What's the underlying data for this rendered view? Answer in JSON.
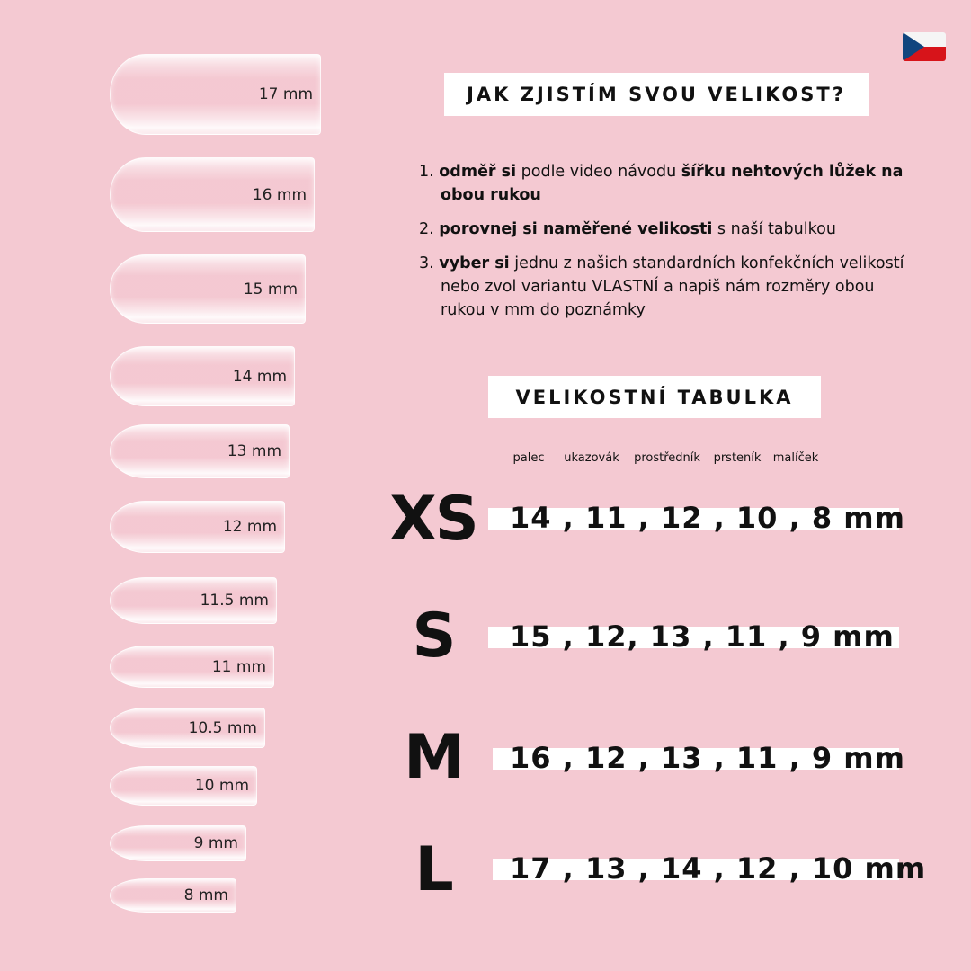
{
  "nails": [
    "17 mm",
    "16 mm",
    "15 mm",
    "14 mm",
    "13 mm",
    "12 mm",
    "11.5 mm",
    "11 mm",
    "10.5 mm",
    "10 mm",
    "9 mm",
    "8 mm"
  ],
  "flag_icon": "czech-flag",
  "heading": "JAK ZJISTÍM SVOU VELIKOST?",
  "steps": [
    {
      "num": "1.",
      "parts": [
        {
          "b": "odměř si"
        },
        {
          "t": " podle video návodu "
        },
        {
          "b": "šířku nehtových lůžek na obou rukou"
        }
      ]
    },
    {
      "num": "2.",
      "parts": [
        {
          "b": "porovnej si naměřené velikosti"
        },
        {
          "t": " s naší tabulkou"
        }
      ]
    },
    {
      "num": "3.",
      "parts": [
        {
          "b": "vyber si"
        },
        {
          "t": " jednu z našich standardních konfekčních velikostí nebo zvol variantu VLASTNÍ a napiš nám rozměry obou rukou v mm do poznámky"
        }
      ]
    }
  ],
  "table_title": "VELIKOSTNÍ TABULKA",
  "fingers": [
    "palec",
    "ukazovák",
    "prostředník",
    "prsteník",
    "malíček"
  ],
  "sizes": [
    {
      "label": "XS",
      "values": "14 , 11 , 12 , 10 , 8 mm"
    },
    {
      "label": "S",
      "values": "15 , 12, 13 , 11 , 9 mm"
    },
    {
      "label": "M",
      "values": "16 , 12 , 13 , 11 , 9 mm"
    },
    {
      "label": "L",
      "values": "17 , 13 , 14 , 12 , 10 mm"
    }
  ],
  "colors": {
    "background": "#f4c9d2",
    "box": "#ffffff",
    "text": "#111111"
  }
}
